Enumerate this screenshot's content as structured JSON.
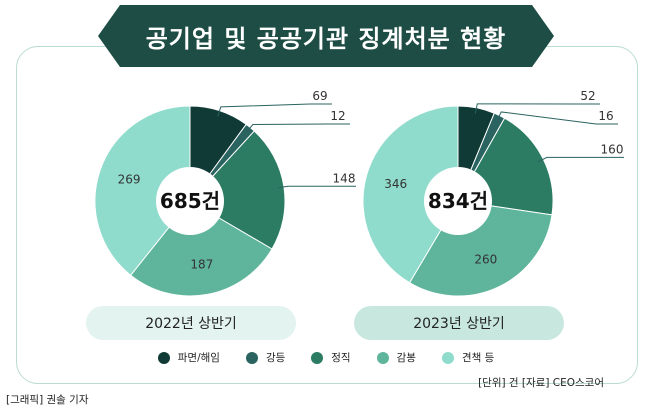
{
  "title": "공기업 및 공공기관 징계처분 현황",
  "colors": {
    "banner": "#1d4d44",
    "categories": [
      "#0f3a35",
      "#2a6360",
      "#2b7c63",
      "#5fb59b",
      "#8fdccc"
    ]
  },
  "chart_data": [
    {
      "type": "pie",
      "style": "donut",
      "label": "2022년 상반기",
      "total_label": "685건",
      "categories": [
        "파면/해임",
        "강등",
        "정직",
        "감봉",
        "견책 등"
      ],
      "values": [
        69,
        12,
        148,
        187,
        269
      ]
    },
    {
      "type": "pie",
      "style": "donut",
      "label": "2023년 상반기",
      "total_label": "834건",
      "categories": [
        "파면/해임",
        "강등",
        "정직",
        "감봉",
        "견책 등"
      ],
      "values": [
        52,
        16,
        160,
        260,
        346
      ]
    }
  ],
  "legend": [
    "파면/해임",
    "강등",
    "정직",
    "감봉",
    "견책 등"
  ],
  "unit_source": "[단위] 건   [자료] CEO스코어",
  "credit": "[그래픽] 권솔 기자"
}
